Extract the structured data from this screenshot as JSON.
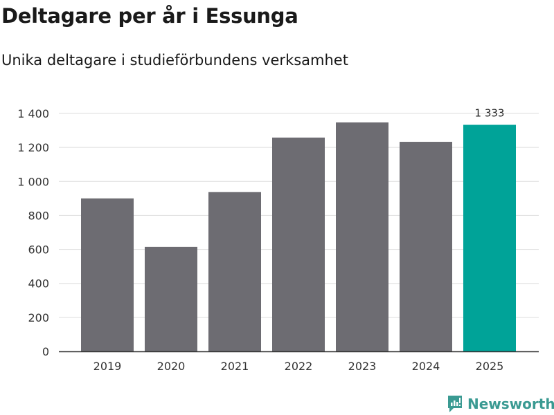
{
  "chart_data": {
    "type": "bar",
    "title": "Deltagare per år i Essunga",
    "subtitle": "Unika deltagare i studieförbundens verksamhet",
    "categories": [
      "2019",
      "2020",
      "2021",
      "2022",
      "2023",
      "2024",
      "2025"
    ],
    "values": [
      900,
      615,
      937,
      1258,
      1347,
      1233,
      1333
    ],
    "highlight_index": 6,
    "data_labels": {
      "2025": "1 333"
    },
    "yticks": [
      0,
      200,
      400,
      600,
      800,
      1000,
      1200,
      1400
    ],
    "ytick_labels": [
      "0",
      "200",
      "400",
      "600",
      "800",
      "1 000",
      "1 200",
      "1 400"
    ],
    "ylim": [
      0,
      1400
    ],
    "xlabel": "",
    "ylabel": "",
    "grid": true,
    "colors": {
      "bar": "#6d6c72",
      "highlight": "#00a398",
      "grid": "#dddddd"
    }
  },
  "brand": {
    "name": "Newsworthy",
    "color": "#3a9a92"
  }
}
